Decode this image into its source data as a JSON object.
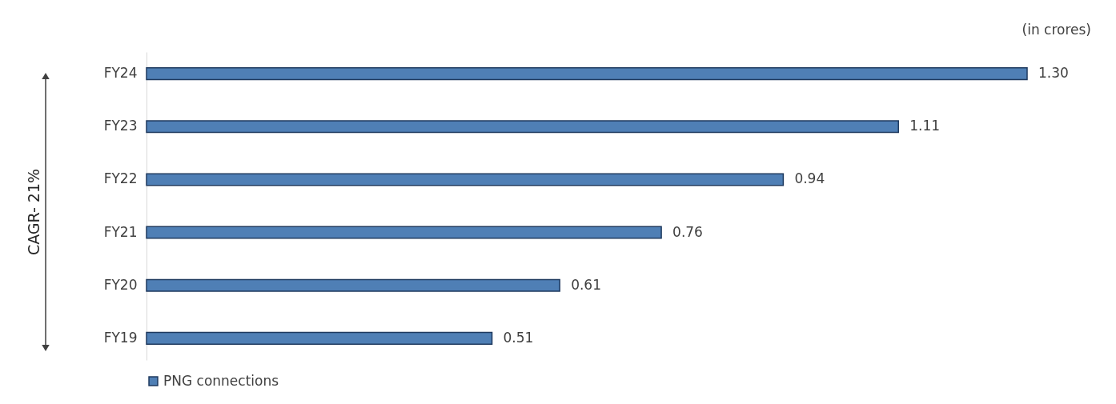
{
  "chart_data": {
    "type": "bar",
    "orientation": "horizontal",
    "categories": [
      "FY24",
      "FY23",
      "FY22",
      "FY21",
      "FY20",
      "FY19"
    ],
    "series": [
      {
        "name": "PNG connections",
        "color": "#4f7fb5",
        "values": [
          1.3,
          1.11,
          0.94,
          0.76,
          0.61,
          0.51
        ],
        "value_labels": [
          "1.30",
          "1.11",
          "0.94",
          "0.76",
          "0.61",
          "0.51"
        ]
      }
    ],
    "legend": "bottom",
    "tick_labels": "y",
    "annotations": [
      "(in crores)",
      "CAGR- 21%"
    ]
  }
}
